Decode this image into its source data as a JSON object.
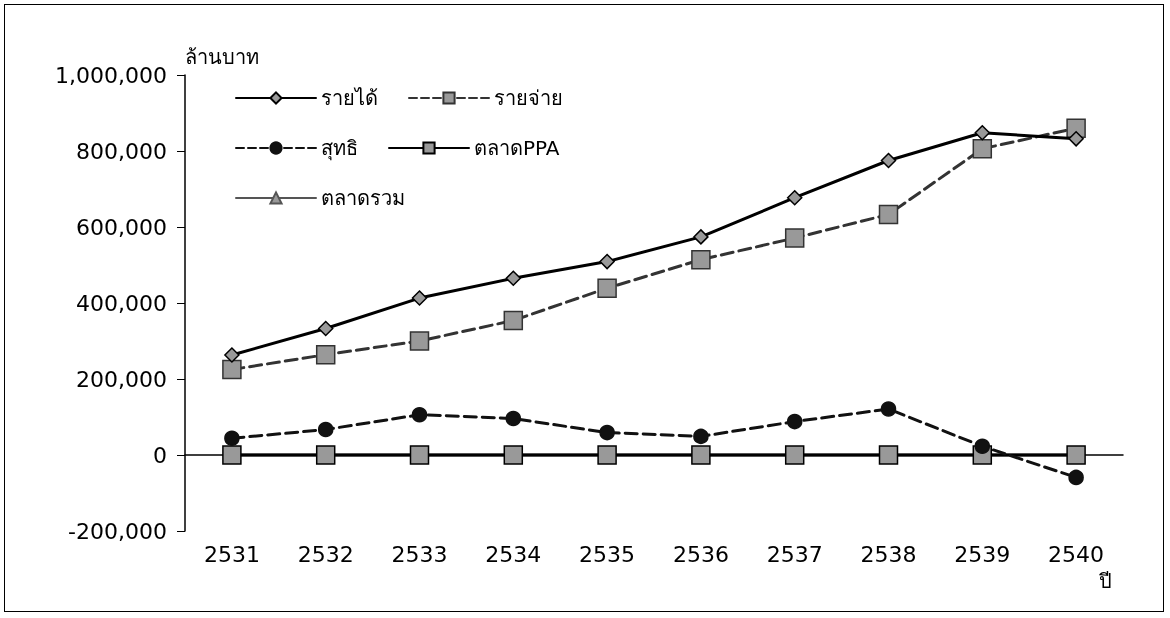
{
  "chart_data": {
    "type": "line",
    "ylabel": "ล้านบาท",
    "xlabel": "ปี",
    "categories": [
      "2531",
      "2532",
      "2533",
      "2534",
      "2535",
      "2536",
      "2537",
      "2538",
      "2539",
      "2540"
    ],
    "series": [
      {
        "name": "รายได้",
        "color": "#000000",
        "marker": "diamond",
        "line_style": "solid",
        "values": [
          263000,
          333000,
          413000,
          465000,
          509000,
          574000,
          677000,
          775000,
          848000,
          832000
        ]
      },
      {
        "name": "รายจ่าย",
        "color": "#333333",
        "marker": "square",
        "line_style": "dashed",
        "values": [
          225000,
          264000,
          300000,
          354000,
          439000,
          514000,
          571000,
          633000,
          806000,
          860000
        ]
      },
      {
        "name": "สุทธิ",
        "color": "#111111",
        "marker": "circle",
        "line_style": "dashed",
        "values": [
          44000,
          67000,
          106000,
          96000,
          59000,
          49000,
          88000,
          121000,
          23000,
          -59000
        ]
      },
      {
        "name": "ตลาดPPA",
        "color": "#000000",
        "marker": "square",
        "line_style": "solid",
        "values": [
          0,
          0,
          0,
          0,
          0,
          0,
          0,
          0,
          0,
          0
        ]
      },
      {
        "name": "ตลาดรวม",
        "color": "#555555",
        "marker": "triangle",
        "line_style": "solid",
        "values": [
          0,
          0,
          0,
          0,
          0,
          0,
          0,
          0,
          0,
          0
        ]
      }
    ],
    "ylim": [
      -200000,
      1000000
    ],
    "yticks": [
      {
        "value": -200000,
        "label": "-200,000"
      },
      0,
      {
        "value": 200000,
        "label": "200,000"
      },
      {
        "value": 400000,
        "label": "400,000"
      },
      {
        "value": 600000,
        "label": "600,000"
      },
      {
        "value": 800000,
        "label": "800,000"
      },
      {
        "value": 1000000,
        "label": "1,000,000"
      }
    ],
    "grid": false,
    "legend": "top left"
  }
}
